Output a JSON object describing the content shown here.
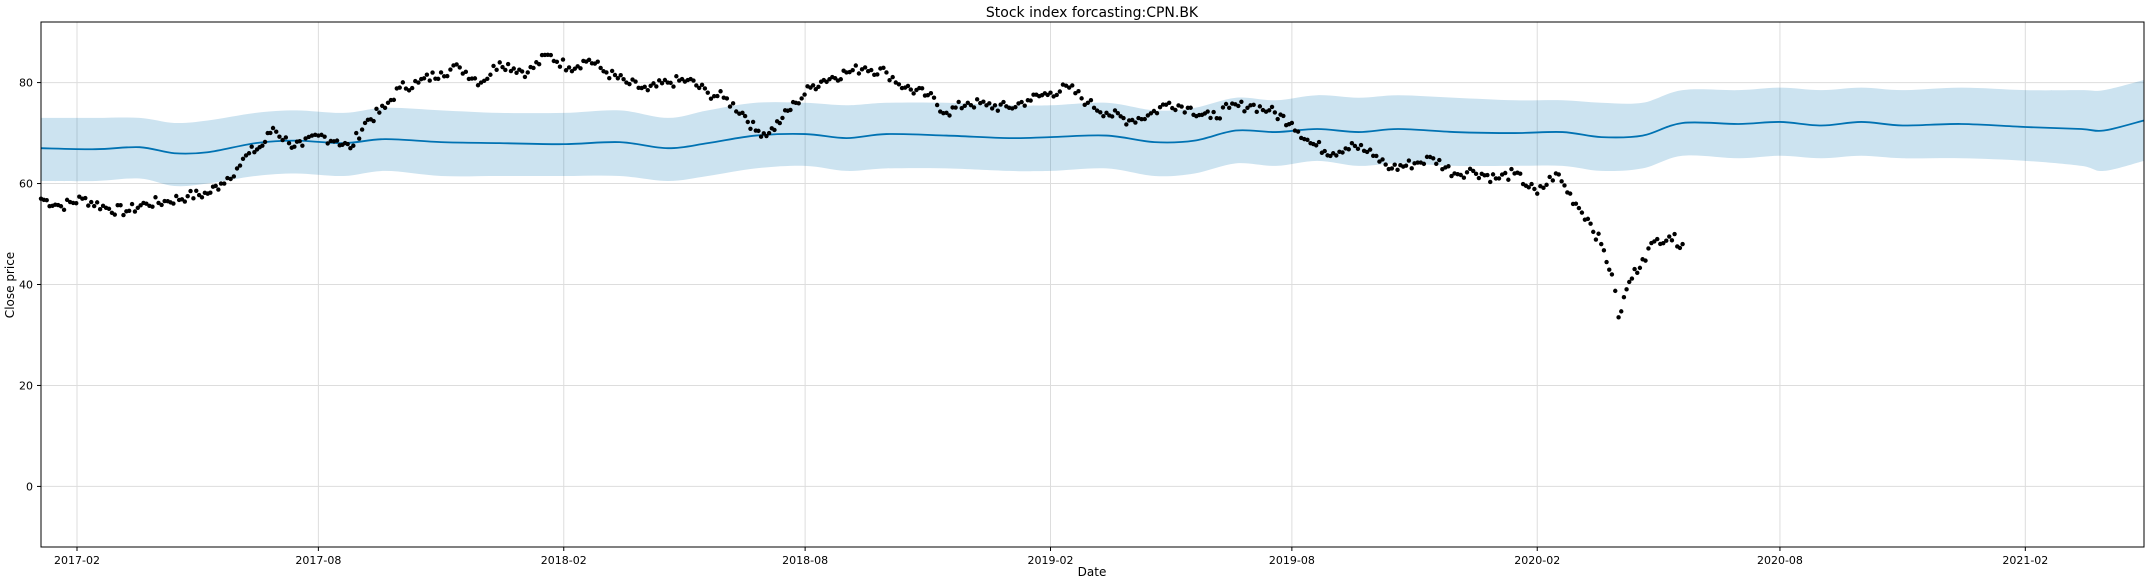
{
  "chart_data": {
    "type": "line",
    "title": "Stock index forcasting:CPN.BK",
    "xlabel": "Date",
    "ylabel": "Close price",
    "xlim": [
      "2017-01-05",
      "2021-05-01"
    ],
    "ylim": [
      -12,
      92
    ],
    "grid": true,
    "x_ticks": [
      "2017-02",
      "2017-08",
      "2018-02",
      "2018-08",
      "2019-02",
      "2019-08",
      "2020-02",
      "2020-08",
      "2021-02"
    ],
    "y_ticks": [
      0,
      20,
      40,
      60,
      80
    ],
    "colors": {
      "actual": "#000000",
      "forecast": "#0072b2",
      "band": "#0072b2"
    },
    "series": [
      {
        "kind": "forecast",
        "points": [
          [
            "2017-01-05",
            67
          ],
          [
            "2017-02-15",
            66.8
          ],
          [
            "2017-03-20",
            67.2
          ],
          [
            "2017-04-15",
            66
          ],
          [
            "2017-05-10",
            66.2
          ],
          [
            "2017-06-15",
            68
          ],
          [
            "2017-07-15",
            68.5
          ],
          [
            "2017-08-20",
            68
          ],
          [
            "2017-09-20",
            68.8
          ],
          [
            "2017-11-01",
            68.2
          ],
          [
            "2017-12-15",
            68
          ],
          [
            "2018-02-01",
            67.8
          ],
          [
            "2018-03-15",
            68.2
          ],
          [
            "2018-04-20",
            67
          ],
          [
            "2018-05-20",
            68
          ],
          [
            "2018-06-25",
            69.5
          ],
          [
            "2018-08-01",
            69.8
          ],
          [
            "2018-09-01",
            69
          ],
          [
            "2018-10-01",
            69.8
          ],
          [
            "2018-11-15",
            69.5
          ],
          [
            "2019-01-01",
            69
          ],
          [
            "2019-02-01",
            69.2
          ],
          [
            "2019-03-15",
            69.5
          ],
          [
            "2019-04-20",
            68.2
          ],
          [
            "2019-05-20",
            68.5
          ],
          [
            "2019-06-20",
            70.5
          ],
          [
            "2019-07-20",
            70.2
          ],
          [
            "2019-08-20",
            70.8
          ],
          [
            "2019-09-20",
            70.2
          ],
          [
            "2019-10-20",
            70.8
          ],
          [
            "2019-12-01",
            70.2
          ],
          [
            "2020-01-15",
            70
          ],
          [
            "2020-02-20",
            70.2
          ],
          [
            "2020-03-20",
            69.2
          ],
          [
            "2020-04-20",
            69.5
          ],
          [
            "2020-05-20",
            72
          ],
          [
            "2020-07-01",
            71.8
          ],
          [
            "2020-08-01",
            72.2
          ],
          [
            "2020-09-01",
            71.5
          ],
          [
            "2020-10-01",
            72.2
          ],
          [
            "2020-11-01",
            71.5
          ],
          [
            "2020-12-15",
            71.8
          ],
          [
            "2021-02-01",
            71.2
          ],
          [
            "2021-03-15",
            70.8
          ],
          [
            "2021-04-01",
            70.5
          ],
          [
            "2021-05-01",
            72.5
          ]
        ],
        "band_upper": [
          [
            "2017-01-05",
            73
          ],
          [
            "2017-02-15",
            73
          ],
          [
            "2017-03-20",
            73
          ],
          [
            "2017-04-15",
            72
          ],
          [
            "2017-05-10",
            72.5
          ],
          [
            "2017-06-15",
            74
          ],
          [
            "2017-07-15",
            74.5
          ],
          [
            "2017-08-20",
            74
          ],
          [
            "2017-09-20",
            75
          ],
          [
            "2017-11-01",
            74.5
          ],
          [
            "2017-12-15",
            74
          ],
          [
            "2018-02-01",
            74
          ],
          [
            "2018-03-15",
            74.5
          ],
          [
            "2018-04-20",
            73
          ],
          [
            "2018-05-20",
            74.5
          ],
          [
            "2018-06-25",
            76
          ],
          [
            "2018-08-01",
            76
          ],
          [
            "2018-09-01",
            75.5
          ],
          [
            "2018-10-01",
            76
          ],
          [
            "2018-11-15",
            76
          ],
          [
            "2019-01-01",
            75.5
          ],
          [
            "2019-02-01",
            75.5
          ],
          [
            "2019-03-15",
            76
          ],
          [
            "2019-04-20",
            74.5
          ],
          [
            "2019-05-20",
            75
          ],
          [
            "2019-06-20",
            77
          ],
          [
            "2019-07-20",
            76.5
          ],
          [
            "2019-08-20",
            77.5
          ],
          [
            "2019-09-20",
            77
          ],
          [
            "2019-10-20",
            77.5
          ],
          [
            "2019-12-01",
            77
          ],
          [
            "2020-01-15",
            76.5
          ],
          [
            "2020-02-20",
            76.5
          ],
          [
            "2020-03-20",
            76
          ],
          [
            "2020-04-20",
            76
          ],
          [
            "2020-05-20",
            78.5
          ],
          [
            "2020-07-01",
            78.5
          ],
          [
            "2020-08-01",
            79
          ],
          [
            "2020-09-01",
            78.5
          ],
          [
            "2020-10-01",
            79
          ],
          [
            "2020-11-01",
            78.5
          ],
          [
            "2020-12-15",
            79
          ],
          [
            "2021-02-01",
            78.5
          ],
          [
            "2021-03-15",
            78.5
          ],
          [
            "2021-04-01",
            78.5
          ],
          [
            "2021-05-01",
            80.5
          ]
        ],
        "band_lower": [
          [
            "2017-01-05",
            60.5
          ],
          [
            "2017-02-15",
            60.5
          ],
          [
            "2017-03-20",
            61
          ],
          [
            "2017-04-15",
            59.5
          ],
          [
            "2017-05-10",
            60
          ],
          [
            "2017-06-15",
            61.5
          ],
          [
            "2017-07-15",
            62
          ],
          [
            "2017-08-20",
            61.5
          ],
          [
            "2017-09-20",
            62.5
          ],
          [
            "2017-11-01",
            61.5
          ],
          [
            "2017-12-15",
            61.5
          ],
          [
            "2018-02-01",
            61.5
          ],
          [
            "2018-03-15",
            61.5
          ],
          [
            "2018-04-20",
            60.5
          ],
          [
            "2018-05-20",
            61.5
          ],
          [
            "2018-06-25",
            63
          ],
          [
            "2018-08-01",
            63.5
          ],
          [
            "2018-09-01",
            62.5
          ],
          [
            "2018-10-01",
            63
          ],
          [
            "2018-11-15",
            63
          ],
          [
            "2019-01-01",
            62.5
          ],
          [
            "2019-02-01",
            62.5
          ],
          [
            "2019-03-15",
            63
          ],
          [
            "2019-04-20",
            61.5
          ],
          [
            "2019-05-20",
            62
          ],
          [
            "2019-06-20",
            64
          ],
          [
            "2019-07-20",
            63.5
          ],
          [
            "2019-08-20",
            64.5
          ],
          [
            "2019-09-20",
            63.5
          ],
          [
            "2019-10-20",
            64
          ],
          [
            "2019-12-01",
            63.5
          ],
          [
            "2020-01-15",
            63.5
          ],
          [
            "2020-02-20",
            63.5
          ],
          [
            "2020-03-20",
            62.5
          ],
          [
            "2020-04-20",
            63
          ],
          [
            "2020-05-20",
            65.5
          ],
          [
            "2020-07-01",
            65
          ],
          [
            "2020-08-01",
            65.5
          ],
          [
            "2020-09-01",
            65
          ],
          [
            "2020-10-01",
            65.5
          ],
          [
            "2020-11-01",
            65
          ],
          [
            "2020-12-15",
            65
          ],
          [
            "2021-02-01",
            64.5
          ],
          [
            "2021-03-15",
            63.5
          ],
          [
            "2021-04-01",
            62.5
          ],
          [
            "2021-05-01",
            64.5
          ]
        ]
      },
      {
        "kind": "actual",
        "points": [
          [
            "2017-01-05",
            57
          ],
          [
            "2017-01-20",
            55.5
          ],
          [
            "2017-02-05",
            57
          ],
          [
            "2017-02-25",
            55
          ],
          [
            "2017-03-10",
            54.5
          ],
          [
            "2017-03-25",
            56
          ],
          [
            "2017-04-10",
            56.5
          ],
          [
            "2017-04-25",
            57.5
          ],
          [
            "2017-05-10",
            58
          ],
          [
            "2017-05-20",
            60
          ],
          [
            "2017-06-01",
            63
          ],
          [
            "2017-06-10",
            66
          ],
          [
            "2017-06-20",
            67.5
          ],
          [
            "2017-06-28",
            71
          ],
          [
            "2017-07-10",
            68
          ],
          [
            "2017-07-20",
            67.5
          ],
          [
            "2017-08-01",
            69.5
          ],
          [
            "2017-08-15",
            68.5
          ],
          [
            "2017-08-25",
            67
          ],
          [
            "2017-09-05",
            72
          ],
          [
            "2017-09-20",
            75
          ],
          [
            "2017-10-01",
            79
          ],
          [
            "2017-10-15",
            80
          ],
          [
            "2017-11-01",
            82
          ],
          [
            "2017-11-15",
            83
          ],
          [
            "2017-12-01",
            80
          ],
          [
            "2017-12-15",
            84
          ],
          [
            "2018-01-05",
            82
          ],
          [
            "2018-01-20",
            85.5
          ],
          [
            "2018-02-05",
            83
          ],
          [
            "2018-02-20",
            84.5
          ],
          [
            "2018-03-05",
            82
          ],
          [
            "2018-03-20",
            80
          ],
          [
            "2018-04-05",
            78.5
          ],
          [
            "2018-04-20",
            80
          ],
          [
            "2018-05-05",
            80.5
          ],
          [
            "2018-05-20",
            78
          ],
          [
            "2018-06-01",
            77
          ],
          [
            "2018-06-15",
            74
          ],
          [
            "2018-06-25",
            70.5
          ],
          [
            "2018-07-05",
            70
          ],
          [
            "2018-07-15",
            73
          ],
          [
            "2018-07-25",
            76
          ],
          [
            "2018-08-05",
            79
          ],
          [
            "2018-08-15",
            80.5
          ],
          [
            "2018-09-01",
            82
          ],
          [
            "2018-09-15",
            83
          ],
          [
            "2018-10-01",
            82
          ],
          [
            "2018-10-15",
            79
          ],
          [
            "2018-11-01",
            77.5
          ],
          [
            "2018-11-15",
            74
          ],
          [
            "2018-12-01",
            76
          ],
          [
            "2018-12-15",
            75.5
          ],
          [
            "2019-01-01",
            75
          ],
          [
            "2019-01-15",
            76.5
          ],
          [
            "2019-02-01",
            78
          ],
          [
            "2019-02-15",
            79
          ],
          [
            "2019-03-01",
            76
          ],
          [
            "2019-03-15",
            74
          ],
          [
            "2019-04-01",
            72.5
          ],
          [
            "2019-04-15",
            73.5
          ],
          [
            "2019-05-01",
            76
          ],
          [
            "2019-05-15",
            75
          ],
          [
            "2019-06-01",
            73
          ],
          [
            "2019-06-15",
            75
          ],
          [
            "2019-07-01",
            75.5
          ],
          [
            "2019-07-15",
            74.5
          ],
          [
            "2019-08-01",
            72
          ],
          [
            "2019-08-15",
            68
          ],
          [
            "2019-09-01",
            66
          ],
          [
            "2019-09-15",
            68
          ],
          [
            "2019-10-01",
            65.5
          ],
          [
            "2019-10-15",
            63
          ],
          [
            "2019-11-01",
            64
          ],
          [
            "2019-11-15",
            65
          ],
          [
            "2019-12-01",
            62
          ],
          [
            "2019-12-15",
            62.5
          ],
          [
            "2020-01-01",
            61
          ],
          [
            "2020-01-15",
            62
          ],
          [
            "2020-02-01",
            58
          ],
          [
            "2020-02-15",
            62
          ],
          [
            "2020-03-01",
            56
          ],
          [
            "2020-03-10",
            53
          ],
          [
            "2020-03-20",
            48
          ],
          [
            "2020-03-28",
            42
          ],
          [
            "2020-04-02",
            33.5
          ],
          [
            "2020-04-10",
            40.5
          ],
          [
            "2020-04-20",
            45
          ],
          [
            "2020-05-01",
            49
          ],
          [
            "2020-05-10",
            49.5
          ],
          [
            "2020-05-20",
            48
          ]
        ]
      }
    ]
  }
}
